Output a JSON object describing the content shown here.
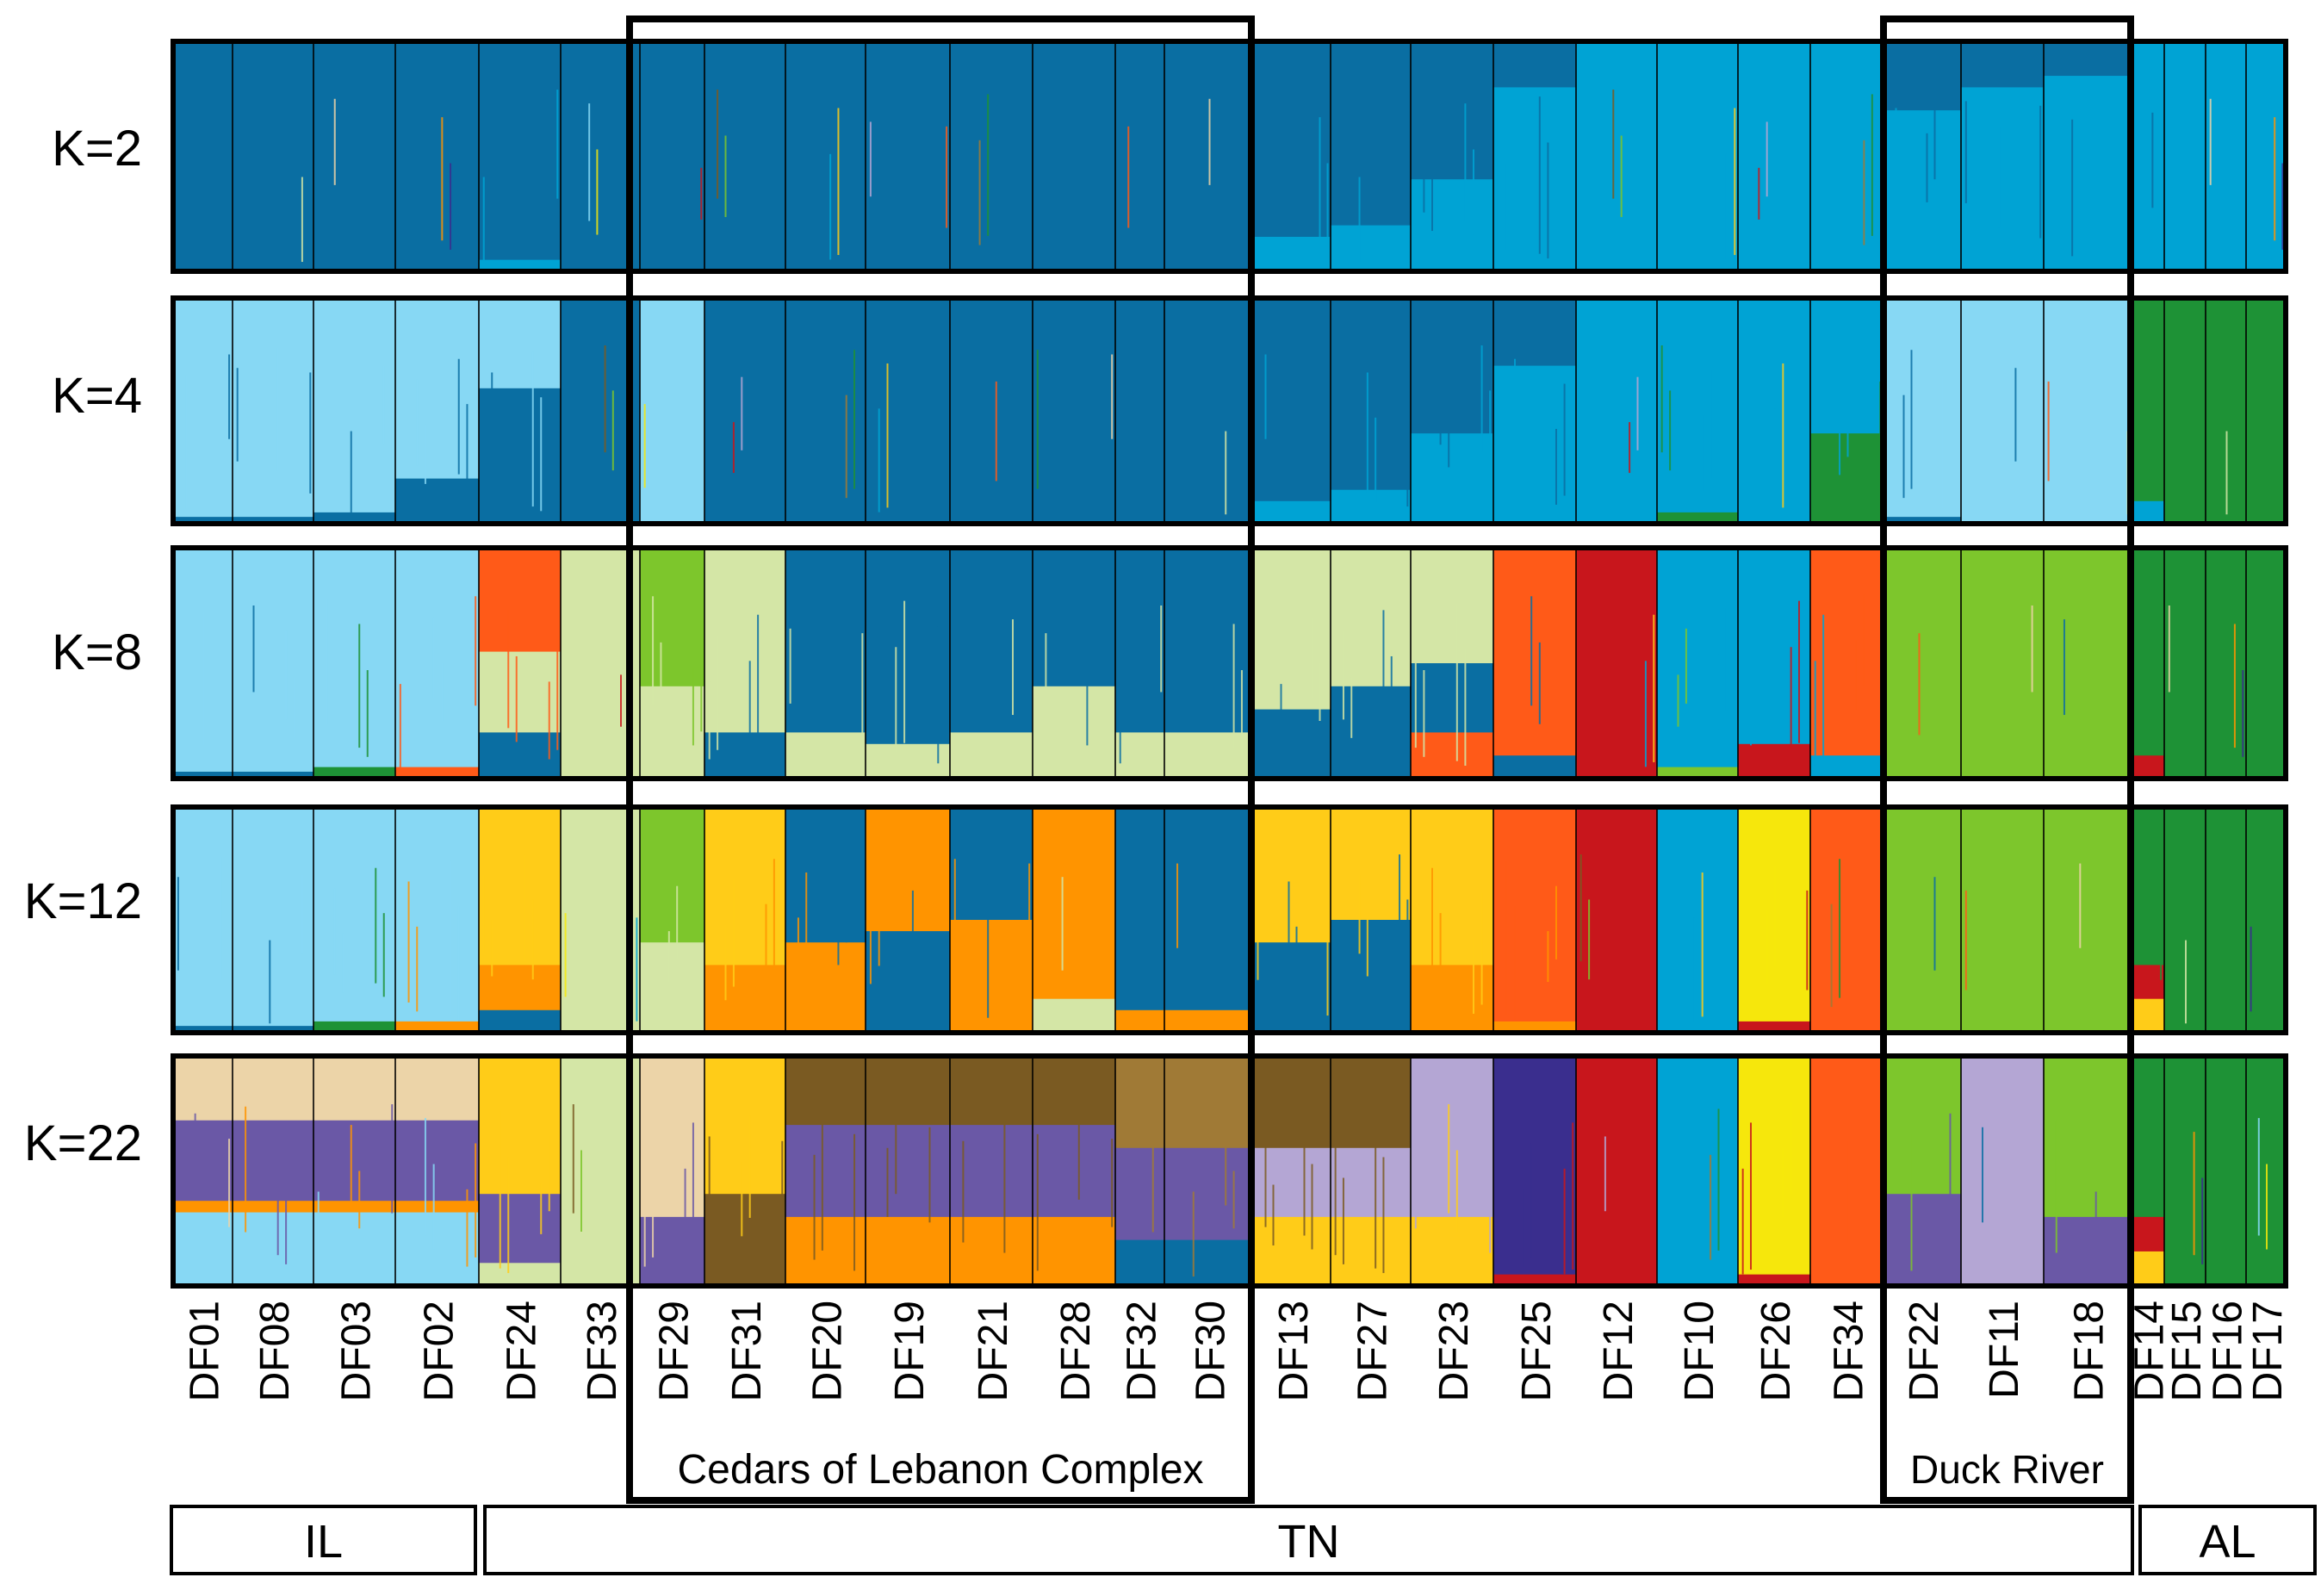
{
  "chart_data": {
    "type": "structure-admixture-barplot",
    "populations": [
      "DF01",
      "DF08",
      "DF03",
      "DF02",
      "DF24",
      "DF33",
      "DF29",
      "DF31",
      "DF20",
      "DF19",
      "DF21",
      "DF28",
      "DF32",
      "DF30",
      "DF13",
      "DF27",
      "DF23",
      "DF25",
      "DF12",
      "DF10",
      "DF26",
      "DF34",
      "DF22",
      "DF11",
      "DF18",
      "DF14",
      "DF15",
      "DF16",
      "DF17"
    ],
    "k_labels": [
      "K=2",
      "K=4",
      "K=8",
      "K=12",
      "K=22"
    ],
    "regions": [
      {
        "label": "IL",
        "from": "DF01",
        "to": "DF24"
      },
      {
        "label": "TN",
        "from": "DF24",
        "to": "DF18"
      },
      {
        "label": "AL",
        "from": "DF14",
        "to": "DF17"
      }
    ],
    "highlight_groups": [
      {
        "label": "Cedars of Lebanon Complex",
        "from": "DF29",
        "to": "DF30"
      },
      {
        "label": "Duck River",
        "from": "DF22",
        "to": "DF18"
      }
    ],
    "colors": {
      "dark_blue": "#0a6ea2",
      "blue": "#00a3d4",
      "light_blue": "#87d8f4",
      "green": "#1e9236",
      "lime": "#7dc62c",
      "pale_green": "#d4e6a6",
      "red_orange": "#ff5a18",
      "red": "#c8161c",
      "orange": "#ff9400",
      "yellow": "#ffcc18",
      "bright_yellow": "#f6e70c",
      "tan": "#ecd4a8",
      "brown": "#a07a36",
      "dark_brown": "#7a5a22",
      "purple": "#6a58a6",
      "lavender": "#b4a6d4",
      "indigo": "#3a2e8e"
    },
    "proportions": {
      "K=2": {
        "DF01": {
          "dark_blue": 1.0
        },
        "DF08": {
          "dark_blue": 1.0
        },
        "DF03": {
          "dark_blue": 1.0
        },
        "DF02": {
          "dark_blue": 1.0
        },
        "DF24": {
          "dark_blue": 0.95,
          "blue": 0.05
        },
        "DF33": {
          "dark_blue": 1.0
        },
        "DF29": {
          "dark_blue": 1.0
        },
        "DF31": {
          "dark_blue": 1.0
        },
        "DF20": {
          "dark_blue": 1.0
        },
        "DF19": {
          "dark_blue": 1.0
        },
        "DF21": {
          "dark_blue": 1.0
        },
        "DF28": {
          "dark_blue": 1.0
        },
        "DF32": {
          "dark_blue": 1.0
        },
        "DF30": {
          "dark_blue": 1.0
        },
        "DF13": {
          "dark_blue": 0.85,
          "blue": 0.15
        },
        "DF27": {
          "dark_blue": 0.8,
          "blue": 0.2
        },
        "DF23": {
          "dark_blue": 0.6,
          "blue": 0.4
        },
        "DF25": {
          "dark_blue": 0.2,
          "blue": 0.8
        },
        "DF12": {
          "blue": 1.0
        },
        "DF10": {
          "blue": 1.0
        },
        "DF26": {
          "blue": 1.0
        },
        "DF34": {
          "blue": 1.0
        },
        "DF22": {
          "dark_blue": 0.3,
          "blue": 0.7
        },
        "DF11": {
          "dark_blue": 0.2,
          "blue": 0.8
        },
        "DF18": {
          "dark_blue": 0.15,
          "blue": 0.85
        },
        "DF14": {
          "blue": 1.0
        },
        "DF15": {
          "blue": 1.0
        },
        "DF16": {
          "blue": 1.0
        },
        "DF17": {
          "blue": 1.0
        }
      },
      "K=4": {
        "DF01": {
          "light_blue": 0.97,
          "dark_blue": 0.03
        },
        "DF08": {
          "light_blue": 0.97,
          "dark_blue": 0.03
        },
        "DF03": {
          "light_blue": 0.95,
          "dark_blue": 0.05
        },
        "DF02": {
          "light_blue": 0.8,
          "dark_blue": 0.2
        },
        "DF24": {
          "light_blue": 0.4,
          "dark_blue": 0.6
        },
        "DF33": {
          "dark_blue": 1.0
        },
        "DF29": {
          "light_blue": 1.0
        },
        "DF31": {
          "dark_blue": 1.0
        },
        "DF20": {
          "dark_blue": 1.0
        },
        "DF19": {
          "dark_blue": 1.0
        },
        "DF21": {
          "dark_blue": 1.0
        },
        "DF28": {
          "dark_blue": 1.0
        },
        "DF32": {
          "dark_blue": 1.0
        },
        "DF30": {
          "dark_blue": 1.0
        },
        "DF13": {
          "dark_blue": 0.9,
          "blue": 0.1
        },
        "DF27": {
          "dark_blue": 0.85,
          "blue": 0.15
        },
        "DF23": {
          "dark_blue": 0.6,
          "blue": 0.4
        },
        "DF25": {
          "dark_blue": 0.3,
          "blue": 0.7
        },
        "DF12": {
          "blue": 1.0
        },
        "DF10": {
          "blue": 0.95,
          "green": 0.05
        },
        "DF26": {
          "blue": 1.0
        },
        "DF34": {
          "blue": 0.6,
          "green": 0.4
        },
        "DF22": {
          "light_blue": 0.97,
          "dark_blue": 0.03
        },
        "DF11": {
          "light_blue": 1.0
        },
        "DF18": {
          "light_blue": 1.0
        },
        "DF14": {
          "green": 0.9,
          "blue": 0.1
        },
        "DF15": {
          "green": 1.0
        },
        "DF16": {
          "green": 1.0
        },
        "DF17": {
          "green": 1.0
        }
      },
      "K=8": {
        "DF01": {
          "light_blue": 0.97,
          "dark_blue": 0.03
        },
        "DF08": {
          "light_blue": 0.97,
          "dark_blue": 0.03
        },
        "DF03": {
          "light_blue": 0.95,
          "green": 0.05
        },
        "DF02": {
          "light_blue": 0.95,
          "red_orange": 0.05
        },
        "DF24": {
          "red_orange": 0.45,
          "pale_green": 0.35,
          "dark_blue": 0.2
        },
        "DF33": {
          "pale_green": 1.0
        },
        "DF29": {
          "lime": 0.6,
          "pale_green": 0.4
        },
        "DF31": {
          "pale_green": 0.8,
          "dark_blue": 0.2
        },
        "DF20": {
          "dark_blue": 0.8,
          "pale_green": 0.2
        },
        "DF19": {
          "dark_blue": 0.85,
          "pale_green": 0.15
        },
        "DF21": {
          "dark_blue": 0.8,
          "pale_green": 0.2
        },
        "DF28": {
          "dark_blue": 0.6,
          "pale_green": 0.4
        },
        "DF32": {
          "dark_blue": 0.8,
          "pale_green": 0.2
        },
        "DF30": {
          "dark_blue": 0.8,
          "pale_green": 0.2
        },
        "DF13": {
          "pale_green": 0.7,
          "dark_blue": 0.3
        },
        "DF27": {
          "pale_green": 0.6,
          "dark_blue": 0.4
        },
        "DF23": {
          "pale_green": 0.5,
          "dark_blue": 0.3,
          "red_orange": 0.2
        },
        "DF25": {
          "red_orange": 0.9,
          "dark_blue": 0.1
        },
        "DF12": {
          "red": 1.0
        },
        "DF10": {
          "blue": 0.95,
          "lime": 0.05
        },
        "DF26": {
          "blue": 0.85,
          "red": 0.15
        },
        "DF34": {
          "red_orange": 0.9,
          "blue": 0.1
        },
        "DF22": {
          "lime": 1.0
        },
        "DF11": {
          "lime": 1.0
        },
        "DF18": {
          "lime": 1.0
        },
        "DF14": {
          "green": 0.9,
          "red": 0.1
        },
        "DF15": {
          "green": 1.0
        },
        "DF16": {
          "green": 1.0
        },
        "DF17": {
          "green": 1.0
        }
      },
      "K=12": {
        "DF01": {
          "light_blue": 0.97,
          "dark_blue": 0.03
        },
        "DF08": {
          "light_blue": 0.97,
          "dark_blue": 0.03
        },
        "DF03": {
          "light_blue": 0.95,
          "green": 0.05
        },
        "DF02": {
          "light_blue": 0.95,
          "orange": 0.05
        },
        "DF24": {
          "yellow": 0.7,
          "orange": 0.2,
          "dark_blue": 0.1
        },
        "DF33": {
          "pale_green": 1.0
        },
        "DF29": {
          "lime": 0.6,
          "pale_green": 0.4
        },
        "DF31": {
          "yellow": 0.7,
          "orange": 0.3
        },
        "DF20": {
          "dark_blue": 0.6,
          "orange": 0.4
        },
        "DF19": {
          "orange": 0.55,
          "dark_blue": 0.45
        },
        "DF21": {
          "dark_blue": 0.5,
          "orange": 0.5
        },
        "DF28": {
          "orange": 0.85,
          "pale_green": 0.15
        },
        "DF32": {
          "dark_blue": 0.9,
          "orange": 0.1
        },
        "DF30": {
          "dark_blue": 0.9,
          "orange": 0.1
        },
        "DF13": {
          "yellow": 0.6,
          "dark_blue": 0.4
        },
        "DF27": {
          "yellow": 0.5,
          "dark_blue": 0.5
        },
        "DF23": {
          "yellow": 0.7,
          "orange": 0.3
        },
        "DF25": {
          "red_orange": 0.95,
          "orange": 0.05
        },
        "DF12": {
          "red": 1.0
        },
        "DF10": {
          "blue": 1.0
        },
        "DF26": {
          "bright_yellow": 0.95,
          "red": 0.05
        },
        "DF34": {
          "red_orange": 1.0
        },
        "DF22": {
          "lime": 1.0
        },
        "DF11": {
          "lime": 1.0
        },
        "DF18": {
          "lime": 1.0
        },
        "DF14": {
          "green": 0.7,
          "red": 0.15,
          "yellow": 0.15
        },
        "DF15": {
          "green": 1.0
        },
        "DF16": {
          "green": 1.0
        },
        "DF17": {
          "green": 1.0
        }
      },
      "K=22": {
        "DF01": {
          "tan": 0.28,
          "purple": 0.35,
          "orange": 0.05,
          "light_blue": 0.32
        },
        "DF08": {
          "tan": 0.28,
          "purple": 0.35,
          "orange": 0.05,
          "light_blue": 0.32
        },
        "DF03": {
          "tan": 0.28,
          "purple": 0.35,
          "orange": 0.05,
          "light_blue": 0.32
        },
        "DF02": {
          "tan": 0.28,
          "purple": 0.35,
          "orange": 0.05,
          "light_blue": 0.32
        },
        "DF24": {
          "yellow": 0.6,
          "purple": 0.3,
          "pale_green": 0.1
        },
        "DF33": {
          "pale_green": 1.0
        },
        "DF29": {
          "tan": 0.7,
          "purple": 0.3
        },
        "DF31": {
          "yellow": 0.6,
          "dark_brown": 0.4
        },
        "DF20": {
          "dark_brown": 0.3,
          "purple": 0.4,
          "orange": 0.3
        },
        "DF19": {
          "dark_brown": 0.3,
          "purple": 0.4,
          "orange": 0.3
        },
        "DF21": {
          "dark_brown": 0.3,
          "purple": 0.4,
          "orange": 0.3
        },
        "DF28": {
          "dark_brown": 0.3,
          "purple": 0.4,
          "orange": 0.3
        },
        "DF32": {
          "brown": 0.4,
          "purple": 0.4,
          "dark_blue": 0.2
        },
        "DF30": {
          "brown": 0.4,
          "purple": 0.4,
          "dark_blue": 0.2
        },
        "DF13": {
          "dark_brown": 0.4,
          "lavender": 0.3,
          "yellow": 0.3
        },
        "DF27": {
          "dark_brown": 0.4,
          "lavender": 0.3,
          "yellow": 0.3
        },
        "DF23": {
          "lavender": 0.7,
          "yellow": 0.3
        },
        "DF25": {
          "indigo": 0.95,
          "red": 0.05
        },
        "DF12": {
          "red": 1.0
        },
        "DF10": {
          "blue": 1.0
        },
        "DF26": {
          "bright_yellow": 0.95,
          "red": 0.05
        },
        "DF34": {
          "red_orange": 1.0
        },
        "DF22": {
          "lime": 0.6,
          "purple": 0.4
        },
        "DF11": {
          "lavender": 1.0
        },
        "DF18": {
          "lime": 0.7,
          "purple": 0.3
        },
        "DF14": {
          "green": 0.7,
          "red": 0.15,
          "yellow": 0.15
        },
        "DF15": {
          "green": 1.0
        },
        "DF16": {
          "green": 1.0
        },
        "DF17": {
          "green": 1.0
        }
      }
    }
  }
}
